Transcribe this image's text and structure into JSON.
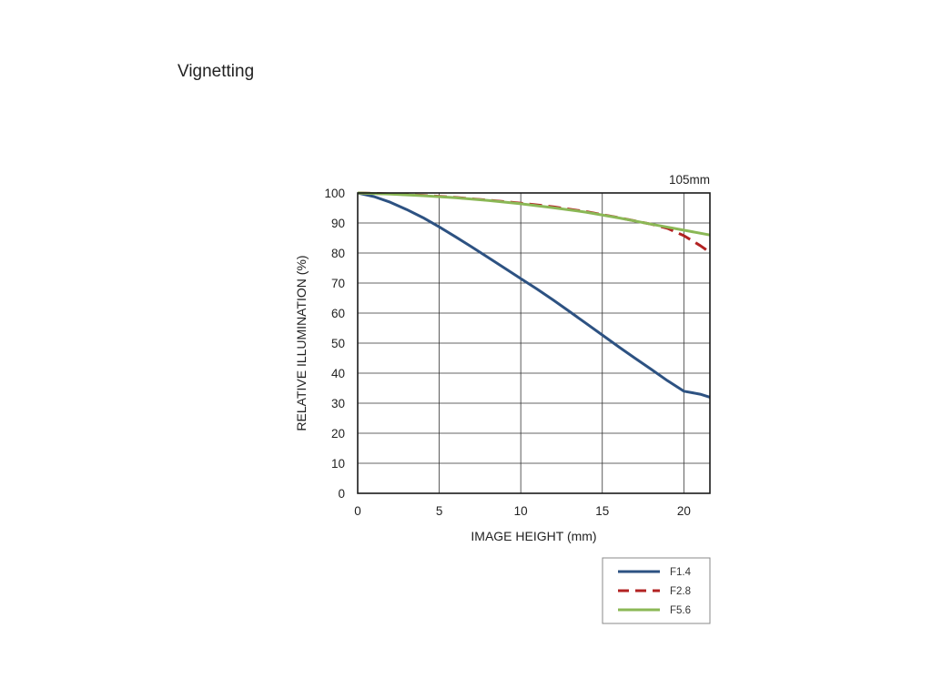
{
  "page": {
    "title": "Vignetting"
  },
  "chart_data": {
    "type": "line",
    "annotation": "105mm",
    "xlabel": "IMAGE HEIGHT (mm)",
    "ylabel": "RELATIVE ILLUMINATION (%)",
    "xlim": [
      0,
      21.6
    ],
    "ylim": [
      0,
      100
    ],
    "xticks": [
      0,
      5,
      10,
      15,
      20
    ],
    "yticks": [
      0,
      10,
      20,
      30,
      40,
      50,
      60,
      70,
      80,
      90,
      100
    ],
    "grid": true,
    "legend_position": "bottom-right",
    "series": [
      {
        "name": "F1.4",
        "color": "#2d5282",
        "dash": "solid",
        "x": [
          0,
          1,
          2,
          3,
          4,
          5,
          6,
          7,
          8,
          9,
          10,
          11,
          12,
          13,
          14,
          15,
          16,
          17,
          18,
          19,
          20,
          21,
          21.6
        ],
        "y": [
          100,
          98.8,
          96.9,
          94.5,
          91.8,
          88.7,
          85.4,
          82,
          78.5,
          75,
          71.5,
          68,
          64.3,
          60.5,
          56.6,
          52.7,
          48.8,
          45,
          41.3,
          37.5,
          34,
          33,
          32
        ]
      },
      {
        "name": "F2.8",
        "color": "#b22222",
        "dash": "dashed",
        "x": [
          0,
          2,
          4,
          6,
          8,
          10,
          12,
          14,
          16,
          18,
          19,
          20,
          21,
          21.6
        ],
        "y": [
          100,
          99.7,
          99.2,
          98.5,
          97.6,
          96.6,
          95.4,
          93.8,
          91.8,
          89.6,
          88.2,
          85.8,
          82.5,
          80.2
        ]
      },
      {
        "name": "F5.6",
        "color": "#8bb856",
        "dash": "solid",
        "x": [
          0,
          2,
          4,
          6,
          8,
          10,
          12,
          14,
          16,
          18,
          20,
          21.6
        ],
        "y": [
          100,
          99.6,
          99.1,
          98.4,
          97.5,
          96.4,
          95.1,
          93.6,
          91.7,
          89.6,
          87.6,
          86
        ]
      }
    ]
  }
}
